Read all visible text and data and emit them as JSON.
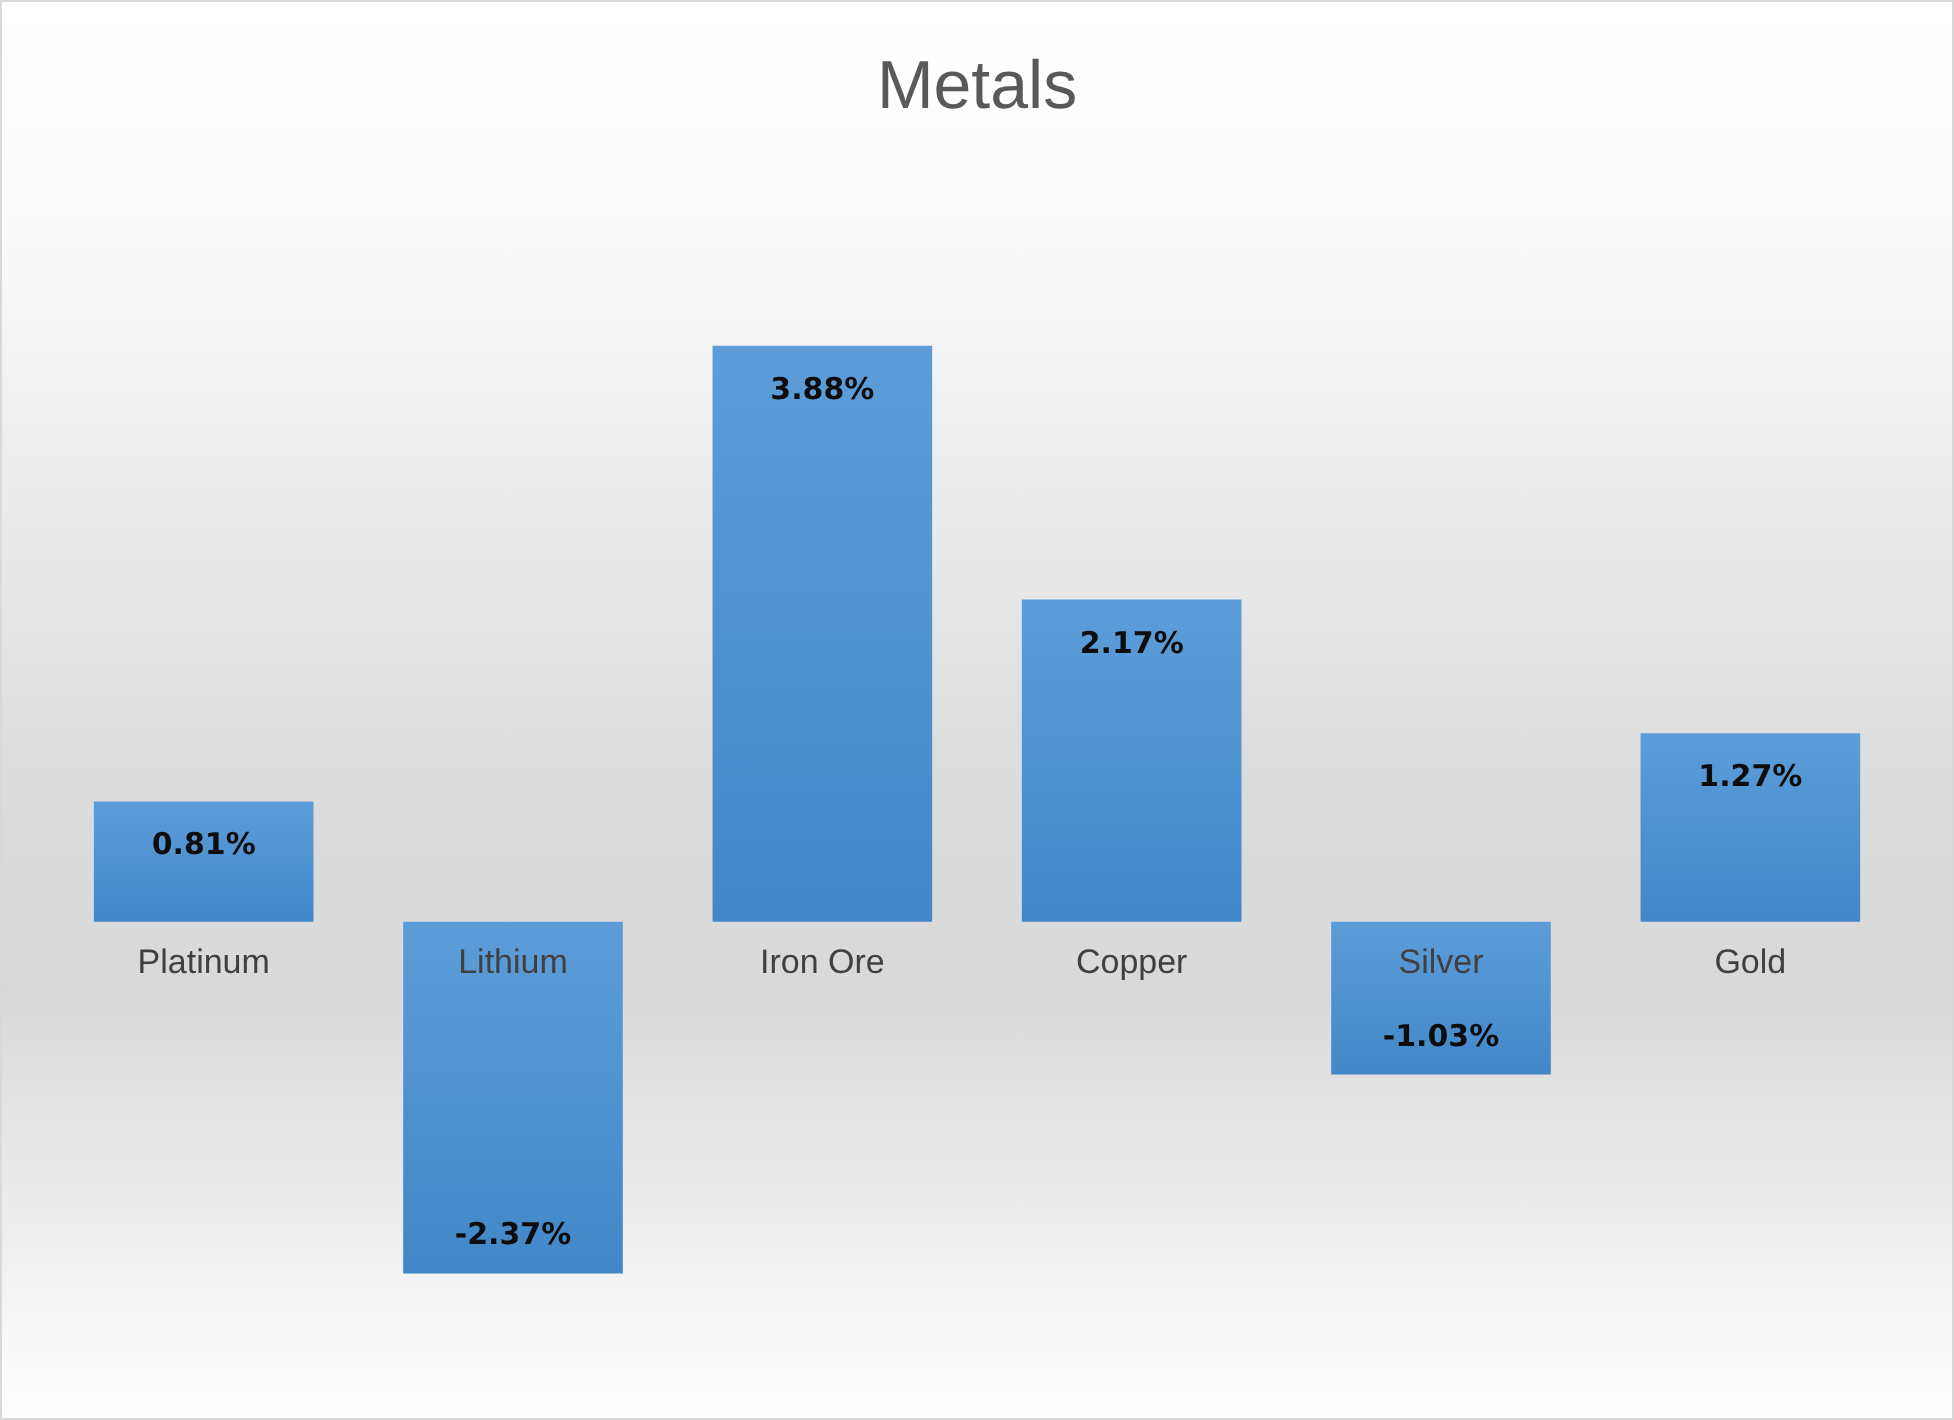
{
  "chart_data": {
    "type": "bar",
    "title": "Metals",
    "categories": [
      "Platinum",
      "Lithium",
      "Iron Ore",
      "Copper",
      "Silver",
      "Gold"
    ],
    "values": [
      0.81,
      -2.37,
      3.88,
      2.17,
      -1.03,
      1.27
    ],
    "value_labels": [
      "0.81%",
      "-2.37%",
      "3.88%",
      "2.17%",
      "-1.03%",
      "1.27%"
    ],
    "color": "#4690d4",
    "tick_labels": "x"
  }
}
